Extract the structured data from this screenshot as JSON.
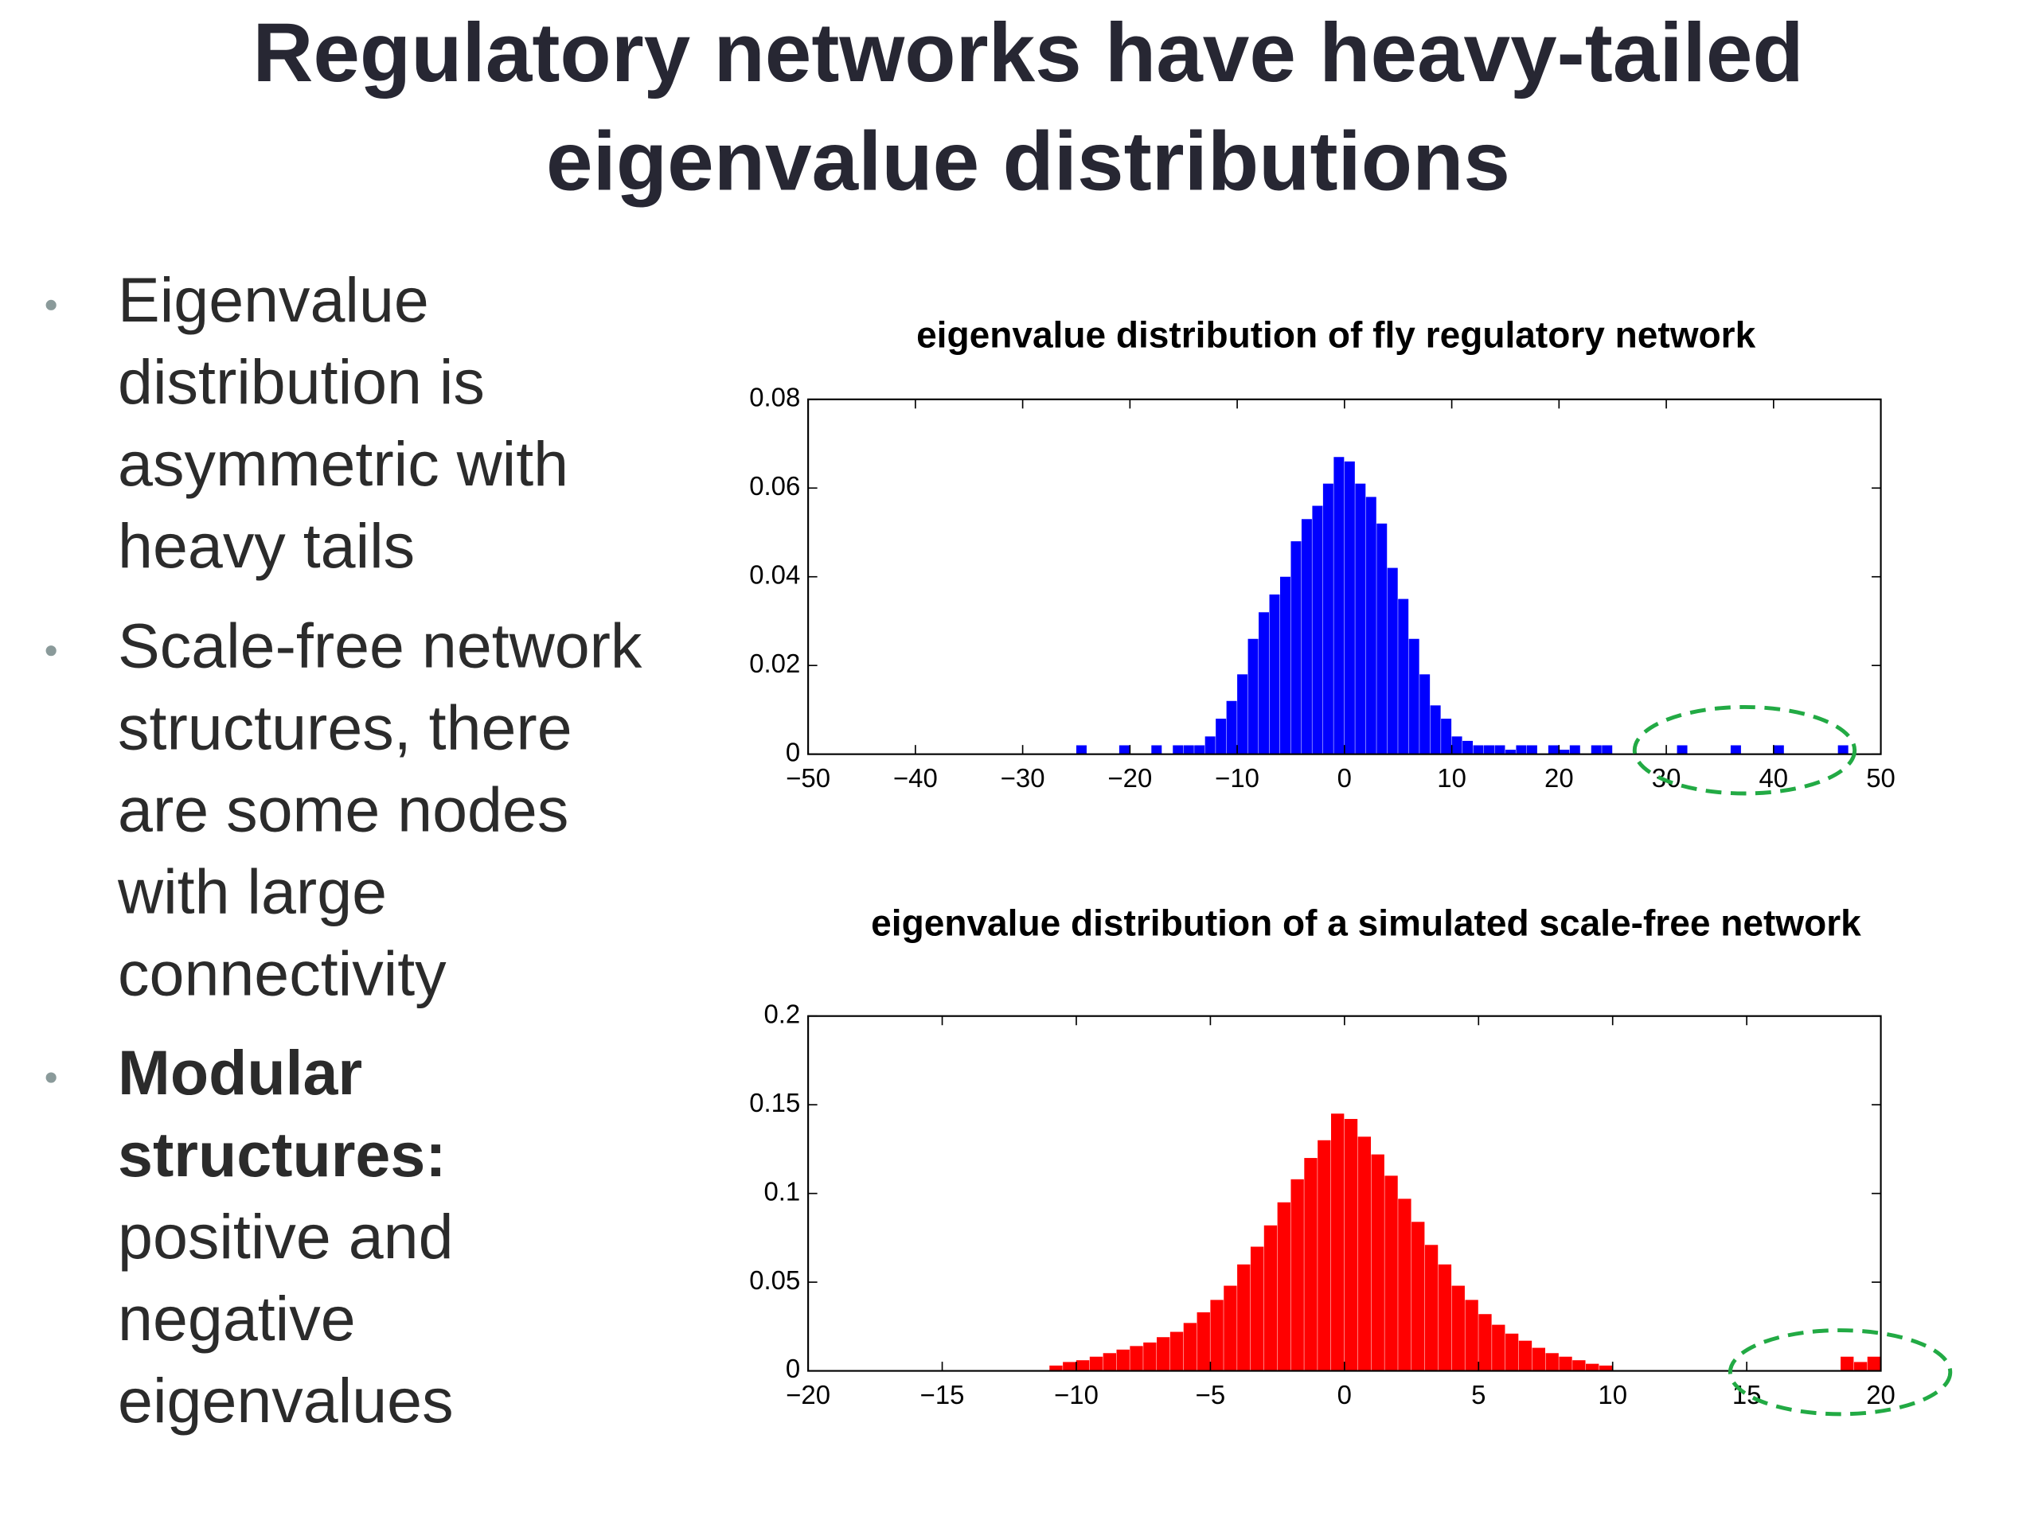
{
  "title": [
    "Regulatory networks have heavy-tailed",
    "eigenvalue distributions"
  ],
  "bullets": [
    {
      "lines": [
        "Eigenvalue",
        "distribution is",
        "asymmetric with",
        "heavy tails"
      ]
    },
    {
      "lines": [
        "Scale-free network",
        "structures, there",
        "are some nodes",
        "with large",
        "connectivity"
      ]
    },
    {
      "lead": [
        "Modular",
        "structures:"
      ],
      "lines": [
        "positive and",
        "negative",
        "eigenvalues"
      ]
    }
  ],
  "chart_data": [
    {
      "type": "histogram",
      "title": "eigenvalue distribution of fly regulatory network",
      "color": "#0000ff",
      "bins": [
        -25,
        -24,
        -23,
        -22,
        -21,
        -20,
        -19,
        -18,
        -17,
        -16,
        -15,
        -14,
        -13,
        -12,
        -11,
        -10,
        -9,
        -8,
        -7,
        -6,
        -5,
        -4,
        -3,
        -2,
        -1,
        0,
        1,
        2,
        3,
        4,
        5,
        6,
        7,
        8,
        9,
        10,
        11,
        12,
        13,
        14,
        15,
        16,
        17,
        18,
        19,
        20,
        21,
        22,
        23,
        24,
        25,
        26,
        27,
        28,
        29,
        30,
        31,
        32,
        33,
        34,
        35,
        36,
        37,
        38,
        39,
        40,
        41,
        42,
        43,
        44,
        45,
        46,
        47
      ],
      "values": [
        0.002,
        0,
        0,
        0,
        0.002,
        0,
        0,
        0.002,
        0,
        0.002,
        0.002,
        0.002,
        0.004,
        0.008,
        0.012,
        0.018,
        0.026,
        0.032,
        0.036,
        0.04,
        0.048,
        0.053,
        0.056,
        0.061,
        0.067,
        0.066,
        0.061,
        0.058,
        0.052,
        0.042,
        0.035,
        0.026,
        0.018,
        0.011,
        0.008,
        0.004,
        0.003,
        0.002,
        0.002,
        0.002,
        0.001,
        0.002,
        0.002,
        0,
        0.002,
        0.001,
        0.002,
        0,
        0.002,
        0.002,
        0,
        0,
        0,
        0,
        0,
        0,
        0.002,
        0,
        0,
        0,
        0,
        0.002,
        0,
        0,
        0,
        0.002,
        0,
        0,
        0,
        0,
        0,
        0.002
      ],
      "xlim": [
        -50,
        50
      ],
      "ylim": [
        0,
        0.08
      ],
      "xticks": [
        {
          "value": -50,
          "label": "−50"
        },
        {
          "value": -40,
          "label": "−40"
        },
        {
          "value": -30,
          "label": "−30"
        },
        {
          "value": -20,
          "label": "−20"
        },
        {
          "value": -10,
          "label": "−10"
        },
        0,
        10,
        20,
        30,
        40,
        50
      ],
      "yticks": [
        0,
        0.02,
        0.04,
        0.06,
        0.08
      ]
    },
    {
      "type": "histogram",
      "title": "eigenvalue distribution of a simulated scale-free network",
      "color": "#ff0000",
      "bins": [
        -11,
        -10.5,
        -10,
        -9.5,
        -9,
        -8.5,
        -8,
        -7.5,
        -7,
        -6.5,
        -6,
        -5.5,
        -5,
        -4.5,
        -4,
        -3.5,
        -3,
        -2.5,
        -2,
        -1.5,
        -1,
        -0.5,
        0,
        0.5,
        1,
        1.5,
        2,
        2.5,
        3,
        3.5,
        4,
        4.5,
        5,
        5.5,
        6,
        6.5,
        7,
        7.5,
        8,
        8.5,
        9,
        9.5,
        10,
        10.5,
        11,
        11.5,
        12,
        12.5,
        13,
        13.5,
        14,
        14.5,
        15,
        15.5,
        16,
        16.5,
        17,
        17.5,
        18,
        18.5,
        19,
        19.5,
        20
      ],
      "values": [
        0.003,
        0.005,
        0.006,
        0.008,
        0.01,
        0.012,
        0.014,
        0.016,
        0.019,
        0.022,
        0.027,
        0.033,
        0.04,
        0.048,
        0.06,
        0.07,
        0.082,
        0.095,
        0.108,
        0.12,
        0.13,
        0.145,
        0.142,
        0.132,
        0.122,
        0.11,
        0.097,
        0.084,
        0.071,
        0.06,
        0.048,
        0.04,
        0.032,
        0.026,
        0.021,
        0.017,
        0.013,
        0.01,
        0.008,
        0.006,
        0.004,
        0.003,
        0,
        0,
        0,
        0,
        0,
        0,
        0,
        0,
        0,
        0,
        0,
        0,
        0,
        0,
        0,
        0,
        0,
        0.008,
        0.005,
        0.008
      ],
      "xlim": [
        -20,
        20
      ],
      "ylim": [
        0,
        0.2
      ],
      "xticks": [
        {
          "value": -20,
          "label": "−20"
        },
        {
          "value": -15,
          "label": "−15"
        },
        {
          "value": -10,
          "label": "−10"
        },
        {
          "value": -5,
          "label": "−5"
        },
        0,
        5,
        10,
        15,
        20
      ],
      "yticks": [
        0,
        0.05,
        0.1,
        0.15,
        0.2
      ]
    }
  ]
}
